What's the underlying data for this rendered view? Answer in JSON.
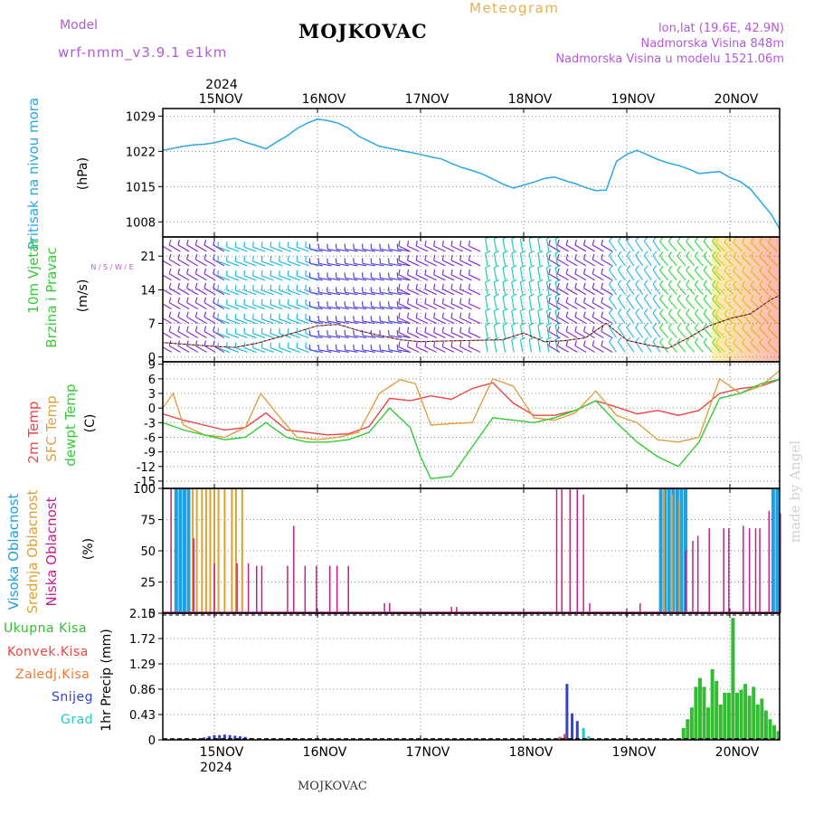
{
  "header": {
    "model_label": "Model",
    "model_value": "wrf-nmm_v3.9.1 e1km",
    "station": "MOJKOVAC",
    "title": "Meteogram",
    "coords": "lon,lat (19.6E, 42.9N)",
    "elevation": "Nadmorska Visina 848m",
    "model_elevation": "Nadmorska Visina u modelu 1521.06m",
    "credit": "made by Angel"
  },
  "footer": {
    "station": "MOJKOVAC"
  },
  "colors": {
    "pressure": "#28a8e8",
    "temp2m": "#ee4444",
    "sfc_temp": "#e0a040",
    "dewpoint": "#33cc33",
    "high_cloud": "#1fa0e0",
    "mid_cloud": "#e0a030",
    "low_cloud": "#c0208a",
    "precip_total": "#33bb33",
    "precip_conv": "#ee4444",
    "precip_frz": "#f07830",
    "precip_snow": "#3344cc",
    "precip_grad": "#22cccc",
    "grid": "#888888"
  },
  "chart_data": {
    "type": "line",
    "x_axis": {
      "year_top": "2024",
      "year_bottom": "2024",
      "dates": [
        "15NOV",
        "16NOV",
        "17NOV",
        "18NOV",
        "19NOV",
        "20NOV"
      ]
    },
    "panels": [
      {
        "id": "pressure",
        "type": "line",
        "ylabel_name": "Pritisak na nivou mora",
        "ylabel_unit": "(hPa)",
        "ylim": [
          1005,
          1030.5
        ],
        "yticks": [
          "1029",
          "1022",
          "1015",
          "1008"
        ],
        "series": [
          {
            "x": [
              -0.5,
              -0.4,
              -0.3,
              -0.2,
              -0.1,
              0,
              0.1,
              0.2,
              0.3,
              0.4,
              0.5,
              0.6,
              0.7,
              0.8,
              0.9,
              1.0,
              1.1,
              1.2,
              1.3,
              1.4,
              1.5,
              1.6,
              1.7,
              1.8,
              1.9,
              2.0,
              2.1,
              2.2,
              2.3,
              2.4,
              2.5,
              2.6,
              2.7,
              2.8,
              2.9,
              3.0,
              3.1,
              3.2,
              3.3,
              3.4,
              3.5,
              3.6,
              3.7,
              3.8,
              3.9,
              4.0,
              4.1,
              4.2,
              4.3,
              4.4,
              4.5,
              4.6,
              4.7,
              4.8,
              4.9,
              5.0,
              5.1,
              5.2,
              5.3,
              5.4,
              5.5
            ],
            "values": [
              1022.2,
              1022.6,
              1023.0,
              1023.3,
              1023.4,
              1023.7,
              1024.2,
              1024.6,
              1023.8,
              1023.2,
              1022.5,
              1023.8,
              1025.0,
              1026.5,
              1027.6,
              1028.4,
              1028.1,
              1027.6,
              1026.6,
              1025.0,
              1024.0,
              1023.0,
              1022.6,
              1022.2,
              1021.8,
              1021.4,
              1020.9,
              1020.5,
              1019.6,
              1018.8,
              1018.2,
              1017.5,
              1016.5,
              1015.5,
              1014.7,
              1015.3,
              1015.9,
              1016.6,
              1016.9,
              1016.2,
              1015.6,
              1014.8,
              1014.2,
              1014.3,
              1020.0,
              1021.4,
              1022.2,
              1021.3,
              1020.4,
              1019.7,
              1019.2,
              1018.5,
              1017.6,
              1017.8,
              1018.0,
              1016.8,
              1016.0,
              1014.5,
              1012.0,
              1009.5,
              1006.0
            ]
          }
        ]
      },
      {
        "id": "wind",
        "type": "line",
        "ylabel_name": "10m Vjetar Brzina i Pravac",
        "ylabel_unit": "(m/s)",
        "compass": "N / S / W / E",
        "ylim": [
          -1,
          25
        ],
        "yticks": [
          "21",
          "14",
          "7",
          "0"
        ],
        "series": [
          {
            "x": [
              -0.5,
              -0.2,
              0,
              0.2,
              0.4,
              0.6,
              0.8,
              1.0,
              1.2,
              1.4,
              1.6,
              1.8,
              2.0,
              2.2,
              2.4,
              2.6,
              2.8,
              3.0,
              3.2,
              3.4,
              3.6,
              3.8,
              4.0,
              4.2,
              4.4,
              4.6,
              4.8,
              5.0,
              5.2,
              5.4,
              5.5
            ],
            "values": [
              3.0,
              2.5,
              2.2,
              2.0,
              2.8,
              4.0,
              5.2,
              6.5,
              6.8,
              5.5,
              4.5,
              3.6,
              3.2,
              3.3,
              3.4,
              3.5,
              3.6,
              5.0,
              3.2,
              3.4,
              4.0,
              7.0,
              3.5,
              2.5,
              1.8,
              4.0,
              6.5,
              8.0,
              9.0,
              12.0,
              13.0
            ]
          }
        ]
      },
      {
        "id": "temperature",
        "type": "line",
        "ylabel_name": "2m Temp",
        "ylabel_sfc": "SFC Temp",
        "ylabel_dew": "dewpt Temp",
        "ylabel_unit": "(C)",
        "ylim": [
          -16.5,
          9.5
        ],
        "yticks": [
          "9",
          "6",
          "3",
          "0",
          "-3",
          "-6",
          "-9",
          "-12",
          "-15"
        ],
        "series": [
          {
            "name": "2m Temp",
            "x": [
              -0.5,
              -0.3,
              -0.1,
              0.1,
              0.3,
              0.5,
              0.7,
              0.9,
              1.1,
              1.3,
              1.5,
              1.7,
              1.9,
              2.1,
              2.3,
              2.5,
              2.7,
              2.9,
              3.1,
              3.3,
              3.5,
              3.7,
              3.9,
              4.1,
              4.3,
              4.5,
              4.7,
              4.9,
              5.1,
              5.3,
              5.5
            ],
            "values": [
              -1.2,
              -2.5,
              -3.5,
              -4.5,
              -4.0,
              -1.0,
              -4.5,
              -5.0,
              -5.5,
              -5.3,
              -3.8,
              2.0,
              1.5,
              2.5,
              1.8,
              4.0,
              5.2,
              1.0,
              -1.5,
              -1.5,
              -0.5,
              1.5,
              0.2,
              -1.2,
              -0.5,
              -1.5,
              -0.5,
              3.0,
              4.0,
              4.5,
              6.0
            ]
          },
          {
            "name": "SFC Temp",
            "x": [
              -0.5,
              -0.4,
              -0.3,
              -0.1,
              0.1,
              0.3,
              0.45,
              0.6,
              0.8,
              1.0,
              1.2,
              1.4,
              1.6,
              1.8,
              1.95,
              2.1,
              2.3,
              2.5,
              2.7,
              2.9,
              3.1,
              3.3,
              3.5,
              3.7,
              3.9,
              4.1,
              4.3,
              4.5,
              4.7,
              4.9,
              5.1,
              5.3,
              5.5
            ],
            "values": [
              0,
              3.0,
              -3.5,
              -5.5,
              -6.0,
              -4.0,
              3.0,
              -1.0,
              -6.0,
              -6.5,
              -6.0,
              -5.0,
              3.0,
              5.8,
              5.0,
              -3.5,
              -3.2,
              -3.0,
              6.0,
              4.5,
              -2.0,
              -2.5,
              -1.0,
              3.5,
              -1.5,
              -3.0,
              -6.5,
              -7.0,
              -6.0,
              6.0,
              3.0,
              4.5,
              8.0
            ]
          },
          {
            "name": "dewpt Temp",
            "x": [
              -0.5,
              -0.3,
              -0.1,
              0.1,
              0.3,
              0.5,
              0.7,
              0.9,
              1.1,
              1.3,
              1.5,
              1.7,
              1.9,
              2.0,
              2.1,
              2.3,
              2.5,
              2.7,
              2.9,
              3.1,
              3.3,
              3.5,
              3.7,
              3.9,
              4.1,
              4.3,
              4.5,
              4.7,
              4.9,
              5.1,
              5.3,
              5.5
            ],
            "values": [
              -3.0,
              -4.5,
              -5.5,
              -6.5,
              -6.0,
              -3.0,
              -6.0,
              -7.0,
              -7.0,
              -6.5,
              -5.0,
              0.0,
              -4.0,
              -10.0,
              -14.5,
              -14.0,
              -8.0,
              -2.0,
              -2.5,
              -3.0,
              -2.0,
              -0.5,
              1.5,
              -3.0,
              -7.0,
              -10.0,
              -12.0,
              -7.0,
              2.0,
              3.0,
              5.0,
              6.0
            ]
          }
        ]
      },
      {
        "id": "clouds",
        "type": "bar",
        "ylabel_high": "Visoka Oblacnost",
        "ylabel_mid": "Srednja Oblacnost",
        "ylabel_low": "Niska Oblacnost",
        "ylabel_unit": "(%)",
        "ylim": [
          0,
          100
        ],
        "yticks": [
          "100",
          "75",
          "50",
          "25",
          "0"
        ],
        "series": [
          {
            "name": "Visoka Oblacnost",
            "x": [
              -0.37,
              -0.33,
              -0.29,
              -0.25,
              4.33,
              4.37,
              4.41,
              4.45,
              4.49,
              4.53,
              4.57,
              5.42,
              5.46
            ],
            "values": [
              100,
              100,
              100,
              100,
              100,
              100,
              100,
              100,
              100,
              100,
              100,
              100,
              100
            ]
          },
          {
            "name": "Srednja Oblacnost",
            "x": [
              -0.21,
              -0.17,
              -0.12,
              -0.08,
              -0.04,
              0.0,
              0.04,
              0.1,
              0.17,
              0.21,
              0.27,
              4.36,
              4.44,
              4.51
            ],
            "values": [
              100,
              100,
              100,
              100,
              100,
              100,
              100,
              100,
              100,
              100,
              100,
              100,
              95,
              90
            ]
          },
          {
            "name": "Niska Oblacnost",
            "x": [
              -0.42,
              -0.2,
              0.0,
              0.22,
              0.33,
              0.41,
              0.46,
              0.71,
              0.77,
              0.88,
              0.99,
              1.12,
              1.19,
              1.3,
              1.65,
              1.7,
              2.3,
              2.35,
              3.32,
              3.37,
              3.45,
              3.52,
              3.58,
              3.64,
              4.13,
              4.57,
              4.64,
              4.69,
              4.8,
              4.94,
              4.99,
              5.13,
              5.19,
              5.25,
              5.29,
              5.38,
              5.49
            ],
            "values": [
              100,
              60,
              40,
              40,
              40,
              38,
              38,
              38,
              70,
              38,
              38,
              38,
              38,
              38,
              8,
              8,
              5,
              5,
              100,
              100,
              100,
              100,
              95,
              8,
              8,
              50,
              58,
              62,
              68,
              68,
              68,
              70,
              68,
              68,
              68,
              82,
              80
            ]
          }
        ]
      },
      {
        "id": "precip",
        "type": "bar",
        "ylabel_lines": [
          "Ukupna Kisa",
          "Konvek.Kisa",
          "Zaledj.Kisa",
          "Snijeg",
          "Grad"
        ],
        "ylabel_unit": "1hr Precip (mm)",
        "ylim": [
          0,
          2.15
        ],
        "yticks": [
          "2.15",
          "1.72",
          "1.29",
          "0.86",
          "0.43",
          "0"
        ],
        "series": [
          {
            "name": "Ukupna Kisa",
            "x": [
              4.55,
              4.59,
              4.63,
              4.67,
              4.71,
              4.75,
              4.79,
              4.83,
              4.87,
              4.91,
              4.95,
              4.99,
              5.03,
              5.07,
              5.11,
              5.15,
              5.19,
              5.23,
              5.27,
              5.31,
              5.35,
              5.39,
              5.43,
              5.47
            ],
            "values": [
              0.2,
              0.35,
              0.55,
              0.9,
              1.05,
              0.9,
              0.55,
              1.2,
              1.0,
              0.6,
              0.8,
              0.8,
              2.07,
              0.8,
              0.85,
              0.95,
              0.75,
              0.9,
              0.6,
              0.7,
              0.5,
              0.35,
              0.25,
              0.15
            ]
          },
          {
            "name": "Snijeg",
            "x": [
              -0.15,
              -0.1,
              -0.05,
              0.0,
              0.05,
              0.1,
              0.15,
              0.2,
              0.25,
              0.3,
              0.35,
              0.72,
              0.77,
              3.42,
              3.47,
              3.52
            ],
            "values": [
              0.02,
              0.04,
              0.06,
              0.08,
              0.08,
              0.09,
              0.08,
              0.07,
              0.06,
              0.05,
              0.03,
              0.03,
              0.03,
              0.95,
              0.45,
              0.32
            ]
          },
          {
            "name": "Konvek.Kisa",
            "x": [
              3.35,
              3.4
            ],
            "values": [
              0.05,
              0.1
            ]
          },
          {
            "name": "Grad",
            "x": [
              3.58,
              3.63
            ],
            "values": [
              0.2,
              0.06
            ]
          }
        ]
      }
    ]
  }
}
